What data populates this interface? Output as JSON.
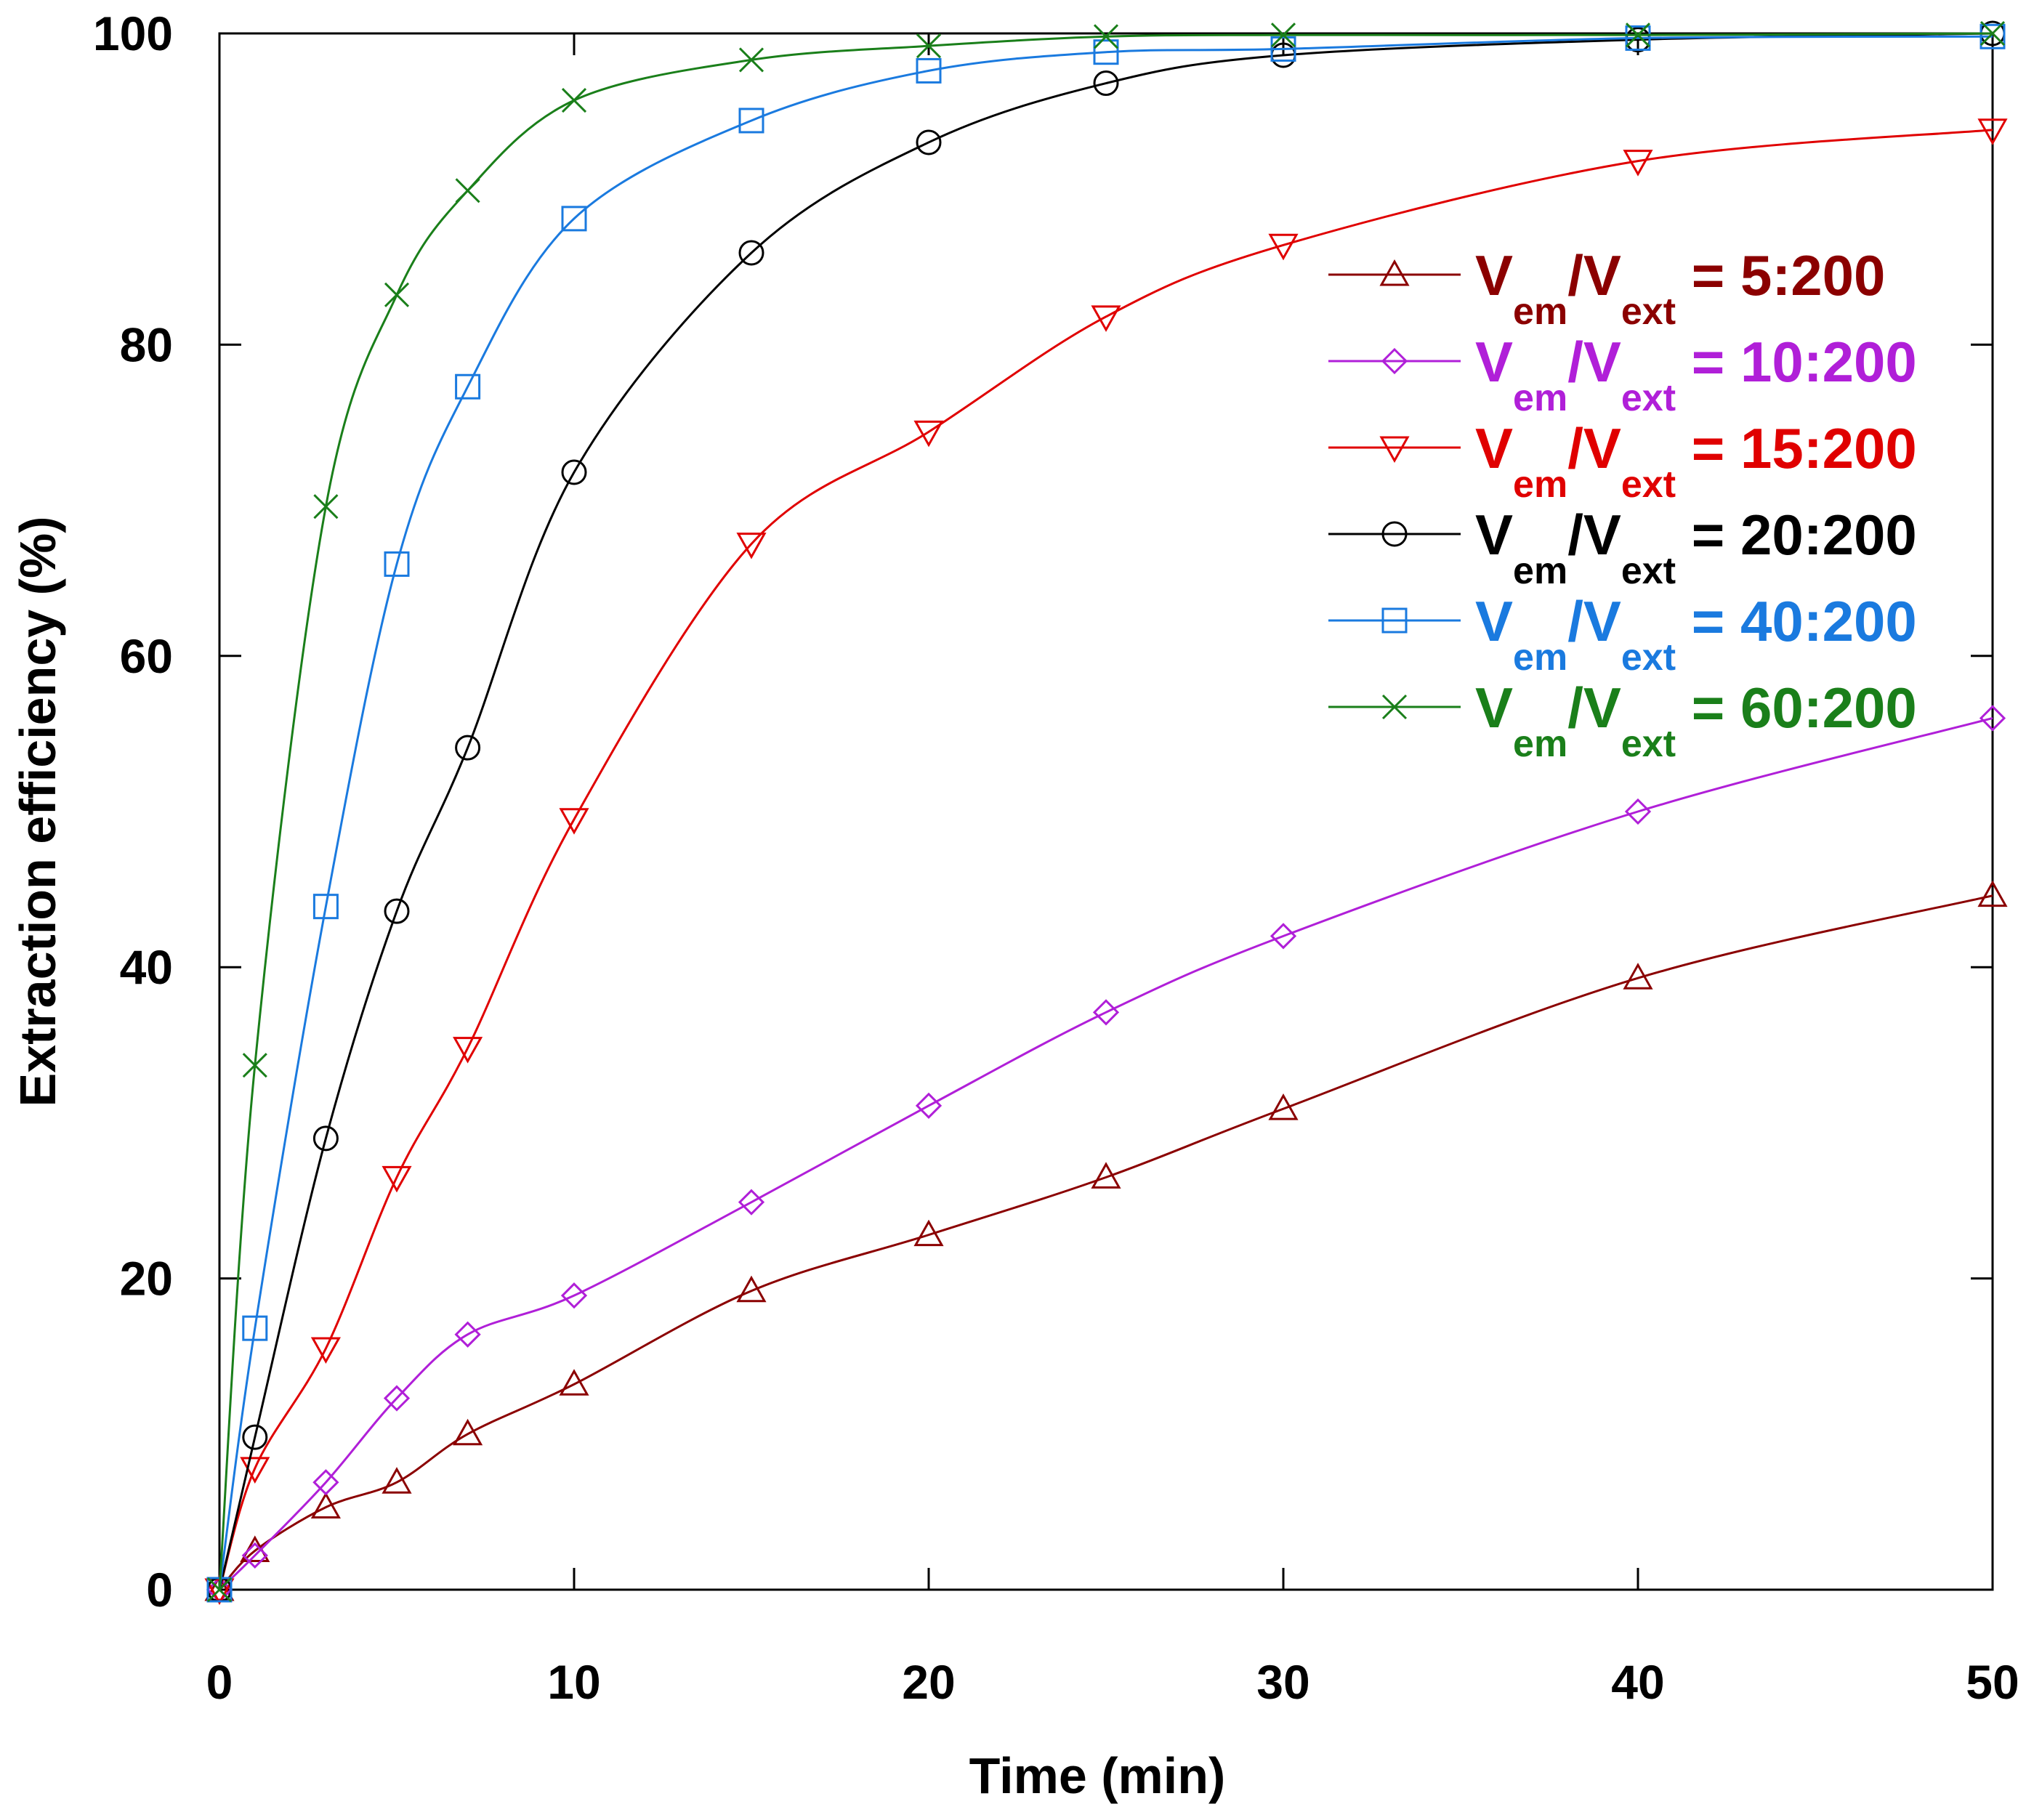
{
  "chart_data": {
    "type": "line",
    "title": "",
    "xlabel": "Time (min)",
    "ylabel": "Extraction efficiency (%)",
    "xlim": [
      0,
      50
    ],
    "ylim": [
      0,
      100
    ],
    "xticks": [
      "0",
      "10",
      "20",
      "30",
      "40",
      "50"
    ],
    "yticks": [
      "0",
      "20",
      "40",
      "60",
      "80",
      "100"
    ],
    "grid": false,
    "legend_position": "right-middle",
    "x": [
      0,
      1,
      3,
      5,
      7,
      10,
      15,
      20,
      25,
      30,
      40,
      50
    ],
    "series": [
      {
        "name": "V_em/V_ext = 5:200",
        "label_var": "V",
        "label_sub1": "em",
        "label_slash": "/V",
        "label_sub2": "ext",
        "label_ratio": " = 5:200",
        "color": "#8b0000",
        "marker": "triangle-up",
        "values": [
          0,
          2.5,
          5.3,
          6.9,
          10.0,
          13.2,
          19.2,
          22.8,
          26.5,
          30.9,
          39.3,
          44.6
        ]
      },
      {
        "name": "V_em/V_ext = 10:200",
        "label_var": "V",
        "label_sub1": "em",
        "label_slash": "/V",
        "label_sub2": "ext",
        "label_ratio": "  = 10:200",
        "color": "#b01fd8",
        "marker": "diamond",
        "values": [
          0,
          2.2,
          6.9,
          12.3,
          16.4,
          18.9,
          24.9,
          31.1,
          37.1,
          42.0,
          50.0,
          56.0
        ]
      },
      {
        "name": "V_em/V_ext = 15:200",
        "label_var": "V",
        "label_sub1": "em",
        "label_slash": "/V",
        "label_sub2": "ext",
        "label_ratio": "  = 15:200",
        "color": "#e00000",
        "marker": "triangle-down",
        "values": [
          0,
          7.8,
          15.5,
          26.5,
          34.8,
          49.5,
          67.2,
          74.4,
          81.8,
          86.4,
          91.8,
          93.8
        ]
      },
      {
        "name": "V_em/V_ext = 20:200",
        "label_var": "V",
        "label_sub1": "em",
        "label_slash": "/V",
        "label_sub2": "ext",
        "label_ratio": " = 20:200",
        "color": "#000000",
        "marker": "circle",
        "values": [
          0,
          9.8,
          29.0,
          43.6,
          54.1,
          71.8,
          85.9,
          93.0,
          96.8,
          98.6,
          99.6,
          100.0
        ]
      },
      {
        "name": "V_em/V_ext = 40:200",
        "label_var": "V",
        "label_sub1": "em",
        "label_slash": "/V",
        "label_sub2": "ext",
        "label_ratio": " = 40:200",
        "color": "#1a7adf",
        "marker": "square",
        "values": [
          0,
          16.8,
          43.9,
          65.9,
          77.3,
          88.1,
          94.4,
          97.6,
          98.8,
          99.0,
          99.7,
          99.8
        ]
      },
      {
        "name": "V_em/V_ext = 60:200",
        "label_var": "V",
        "label_sub1": "em",
        "label_slash": "/V",
        "label_sub2": "ext",
        "label_ratio": " = 60:200",
        "color": "#1a7f1a",
        "marker": "cross",
        "values": [
          0,
          33.7,
          69.6,
          83.2,
          89.9,
          95.7,
          98.3,
          99.2,
          99.8,
          99.9,
          99.9,
          100.0
        ]
      }
    ]
  }
}
